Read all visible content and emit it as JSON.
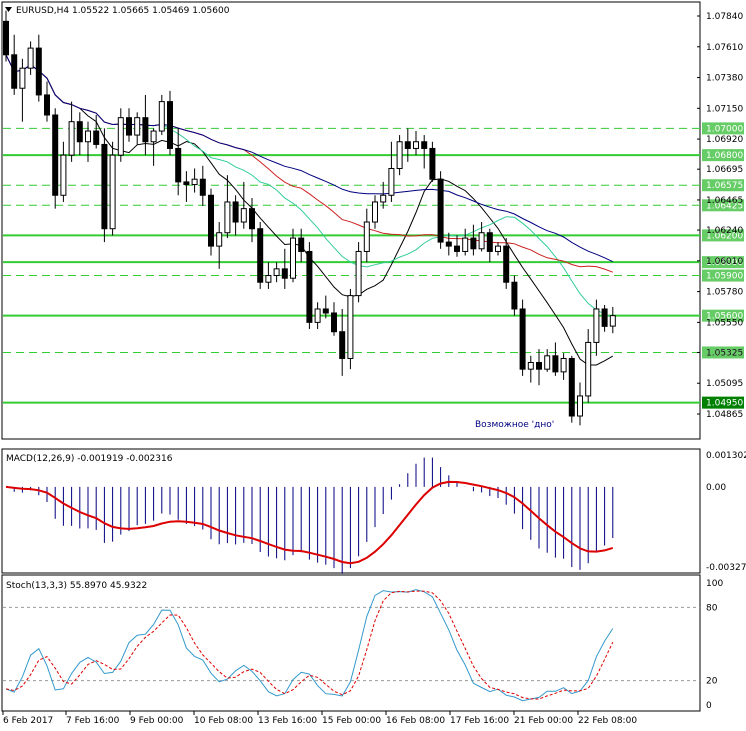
{
  "main": {
    "header": "EURUSD,H4  1.05522 1.05665 1.05469 1.05600",
    "y_ticks": [
      "1.07840",
      "1.07610",
      "1.07380",
      "1.07150",
      "1.06920",
      "1.06695",
      "1.06465",
      "1.06240",
      "1.06010",
      "1.05780",
      "1.05550",
      "1.05325",
      "1.05095",
      "1.04865"
    ],
    "level_labels": [
      "1.07000",
      "1.06800",
      "1.06575",
      "1.06425",
      "1.06200",
      "1.06000",
      "1.05900",
      "1.05600",
      "1.05325",
      "1.04950"
    ],
    "annotation": "Возможное 'дно'"
  },
  "macd": {
    "header": "MACD(12,26,9) -0.001919 -0.002316",
    "y_ticks": [
      "0.001302",
      "0.00",
      "-0.003271"
    ]
  },
  "stoch": {
    "header": "Stoch(13,3,3) 55.8970 45.9322",
    "y_ticks": [
      "100",
      "80",
      "20",
      "0"
    ]
  },
  "x_labels": [
    "6 Feb 2017",
    "7 Feb 16:00",
    "9 Feb 00:00",
    "10 Feb 08:00",
    "13 Feb 16:00",
    "15 Feb 00:00",
    "16 Feb 08:00",
    "17 Feb 16:00",
    "21 Feb 00:00",
    "22 Feb 08:00"
  ],
  "colors": {
    "bull": "#ffffff",
    "bear": "#000000",
    "level": "#33cc33",
    "level_label_bg": "#66cc66",
    "ma_fast": "#33cc99",
    "ma_mid": "#cc2222",
    "ma_slow": "#000080",
    "price_line": "#000000",
    "macd_hist": "#000080",
    "macd_signal": "#dd0000",
    "stoch_main": "#3399cc",
    "stoch_signal": "#dd0000",
    "annotation": "#000080"
  },
  "chart_data": [
    {
      "type": "candlestick",
      "title": "EURUSD,H4",
      "ohlc_last": {
        "open": 1.05522,
        "high": 1.05665,
        "low": 1.05469,
        "close": 1.056
      },
      "ylim": [
        1.04865,
        1.0784
      ],
      "candles": [
        [
          1.078,
          1.0788,
          1.075,
          1.0755
        ],
        [
          1.0755,
          1.077,
          1.0725,
          1.073
        ],
        [
          1.073,
          1.0752,
          1.0705,
          1.0745
        ],
        [
          1.0745,
          1.0765,
          1.074,
          1.076
        ],
        [
          1.076,
          1.077,
          1.072,
          1.0725
        ],
        [
          1.0725,
          1.0735,
          1.0705,
          1.071
        ],
        [
          1.071,
          1.0715,
          1.064,
          1.065
        ],
        [
          1.065,
          1.069,
          1.0645,
          1.068
        ],
        [
          1.068,
          1.072,
          1.0675,
          1.0705
        ],
        [
          1.0705,
          1.0712,
          1.068,
          1.069
        ],
        [
          1.069,
          1.0705,
          1.0675,
          1.0698
        ],
        [
          1.0698,
          1.071,
          1.0685,
          1.0688
        ],
        [
          1.0688,
          1.07,
          1.0615,
          1.0625
        ],
        [
          1.0625,
          1.069,
          1.062,
          1.068
        ],
        [
          1.068,
          1.0715,
          1.0675,
          1.0708
        ],
        [
          1.0708,
          1.0715,
          1.069,
          1.0695
        ],
        [
          1.0695,
          1.0712,
          1.0688,
          1.0708
        ],
        [
          1.0708,
          1.0725,
          1.068,
          1.069
        ],
        [
          1.069,
          1.07,
          1.0672,
          1.0698
        ],
        [
          1.0698,
          1.0725,
          1.0695,
          1.072
        ],
        [
          1.072,
          1.0728,
          1.068,
          1.0685
        ],
        [
          1.0685,
          1.07,
          1.065,
          1.066
        ],
        [
          1.066,
          1.0668,
          1.0645,
          1.0658
        ],
        [
          1.0658,
          1.067,
          1.0652,
          1.0662
        ],
        [
          1.0662,
          1.0672,
          1.0642,
          1.065
        ],
        [
          1.065,
          1.0655,
          1.0605,
          1.0612
        ],
        [
          1.0612,
          1.063,
          1.0595,
          1.0622
        ],
        [
          1.0622,
          1.0665,
          1.0618,
          1.0645
        ],
        [
          1.0645,
          1.065,
          1.062,
          1.063
        ],
        [
          1.063,
          1.066,
          1.0625,
          1.064
        ],
        [
          1.064,
          1.0648,
          1.0615,
          1.0625
        ],
        [
          1.0625,
          1.063,
          1.058,
          1.0585
        ],
        [
          1.0585,
          1.06,
          1.058,
          1.059
        ],
        [
          1.059,
          1.06,
          1.0585,
          1.0595
        ],
        [
          1.0595,
          1.061,
          1.058,
          1.0588
        ],
        [
          1.0588,
          1.0625,
          1.0585,
          1.0618
        ],
        [
          1.0618,
          1.0625,
          1.06,
          1.0608
        ],
        [
          1.0608,
          1.0615,
          1.055,
          1.0555
        ],
        [
          1.0555,
          1.057,
          1.055,
          1.0565
        ],
        [
          1.0565,
          1.0575,
          1.0558,
          1.0562
        ],
        [
          1.0562,
          1.057,
          1.0545,
          1.0548
        ],
        [
          1.0548,
          1.0565,
          1.0515,
          1.0528
        ],
        [
          1.0528,
          1.058,
          1.052,
          1.0575
        ],
        [
          1.0575,
          1.0615,
          1.057,
          1.0608
        ],
        [
          1.0608,
          1.064,
          1.06,
          1.063
        ],
        [
          1.063,
          1.065,
          1.0625,
          1.0645
        ],
        [
          1.0645,
          1.066,
          1.064,
          1.065
        ],
        [
          1.065,
          1.069,
          1.0645,
          1.067
        ],
        [
          1.067,
          1.0695,
          1.0665,
          1.069
        ],
        [
          1.069,
          1.07,
          1.0675,
          1.0685
        ],
        [
          1.0685,
          1.0698,
          1.068,
          1.069
        ],
        [
          1.069,
          1.0695,
          1.067,
          1.0685
        ],
        [
          1.0685,
          1.069,
          1.066,
          1.0662
        ],
        [
          1.0662,
          1.0668,
          1.061,
          1.0615
        ],
        [
          1.0615,
          1.0622,
          1.0605,
          1.0612
        ],
        [
          1.0612,
          1.062,
          1.0604,
          1.0608
        ],
        [
          1.0608,
          1.0625,
          1.0605,
          1.0618
        ],
        [
          1.0618,
          1.0628,
          1.0605,
          1.061
        ],
        [
          1.061,
          1.063,
          1.0608,
          1.0622
        ],
        [
          1.0622,
          1.0625,
          1.06,
          1.0608
        ],
        [
          1.0608,
          1.0615,
          1.0605,
          1.0612
        ],
        [
          1.0612,
          1.0618,
          1.058,
          1.0585
        ],
        [
          1.0585,
          1.059,
          1.056,
          1.0565
        ],
        [
          1.0565,
          1.0572,
          1.0515,
          1.052
        ],
        [
          1.052,
          1.053,
          1.051,
          1.0525
        ],
        [
          1.0525,
          1.0535,
          1.0508,
          1.052
        ],
        [
          1.052,
          1.0535,
          1.0518,
          1.053
        ],
        [
          1.053,
          1.054,
          1.0515,
          1.0518
        ],
        [
          1.0518,
          1.0532,
          1.0512,
          1.0528
        ],
        [
          1.0528,
          1.053,
          1.048,
          1.0485
        ],
        [
          1.0485,
          1.051,
          1.0478,
          1.05
        ],
        [
          1.05,
          1.055,
          1.0495,
          1.054
        ],
        [
          1.054,
          1.0572,
          1.053,
          1.0565
        ],
        [
          1.0565,
          1.0568,
          1.0548,
          1.0552
        ],
        [
          1.05522,
          1.05665,
          1.05469,
          1.056
        ]
      ],
      "horizontal_levels": [
        1.07,
        1.068,
        1.06575,
        1.06425,
        1.062,
        1.06,
        1.059,
        1.056,
        1.05325,
        1.0495
      ],
      "solid_levels": [
        1.068,
        1.062,
        1.06,
        1.056,
        1.0495
      ]
    },
    {
      "type": "histogram+line",
      "title": "MACD(12,26,9)",
      "last": {
        "main": -0.001919,
        "signal": -0.002316
      },
      "ylim": [
        -0.003271,
        0.001302
      ]
    },
    {
      "type": "line",
      "title": "Stoch(13,3,3)",
      "last": {
        "main": 55.897,
        "signal": 45.9322
      },
      "ylim": [
        0,
        100
      ],
      "levels": [
        80,
        20
      ]
    }
  ]
}
